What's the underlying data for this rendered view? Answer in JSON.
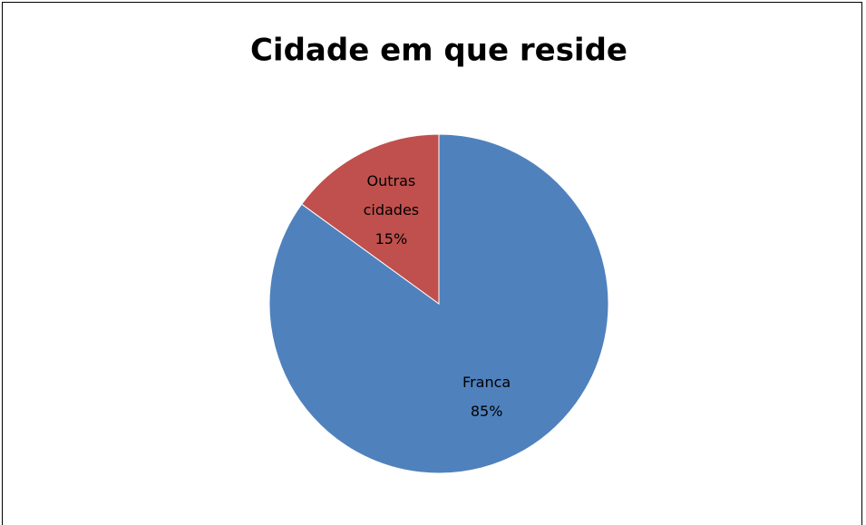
{
  "chart_data": {
    "type": "pie",
    "title": "Cidade em que reside",
    "categories": [
      "Franca",
      "Outras cidades"
    ],
    "values": [
      85,
      15
    ],
    "value_labels": [
      "85%",
      "15%"
    ],
    "colors": [
      "#4f81bd",
      "#c0504d"
    ]
  }
}
